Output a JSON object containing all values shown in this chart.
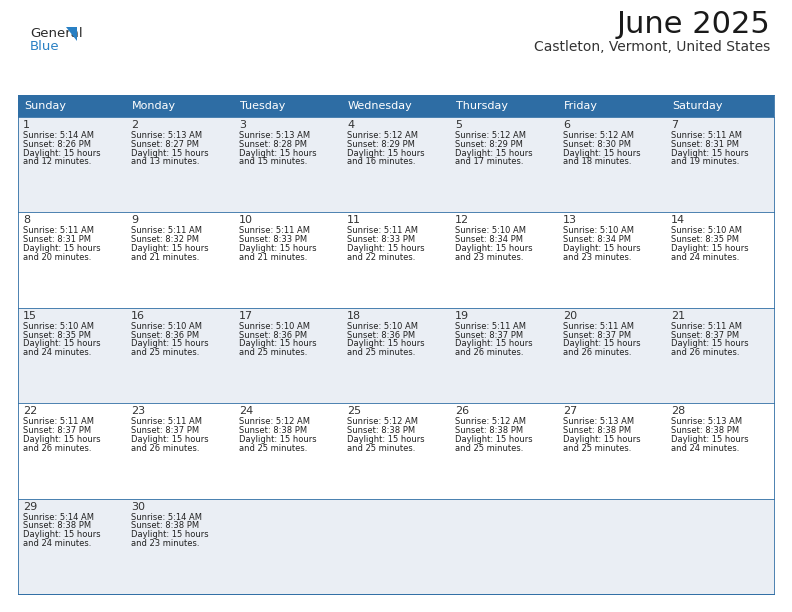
{
  "title": "June 2025",
  "subtitle": "Castleton, Vermont, United States",
  "header_color": "#2E6DA4",
  "header_text_color": "#FFFFFF",
  "days_of_week": [
    "Sunday",
    "Monday",
    "Tuesday",
    "Wednesday",
    "Thursday",
    "Friday",
    "Saturday"
  ],
  "bg_color": "#FFFFFF",
  "cell_bg_even": "#EAEEF4",
  "cell_bg_odd": "#FFFFFF",
  "border_color": "#2E6DA4",
  "text_color": "#222222",
  "day_num_color": "#333333",
  "calendar": [
    [
      {
        "day": 1,
        "sunrise": "5:14 AM",
        "sunset": "8:26 PM",
        "daylight": "15 hours and 12 minutes."
      },
      {
        "day": 2,
        "sunrise": "5:13 AM",
        "sunset": "8:27 PM",
        "daylight": "15 hours and 13 minutes."
      },
      {
        "day": 3,
        "sunrise": "5:13 AM",
        "sunset": "8:28 PM",
        "daylight": "15 hours and 15 minutes."
      },
      {
        "day": 4,
        "sunrise": "5:12 AM",
        "sunset": "8:29 PM",
        "daylight": "15 hours and 16 minutes."
      },
      {
        "day": 5,
        "sunrise": "5:12 AM",
        "sunset": "8:29 PM",
        "daylight": "15 hours and 17 minutes."
      },
      {
        "day": 6,
        "sunrise": "5:12 AM",
        "sunset": "8:30 PM",
        "daylight": "15 hours and 18 minutes."
      },
      {
        "day": 7,
        "sunrise": "5:11 AM",
        "sunset": "8:31 PM",
        "daylight": "15 hours and 19 minutes."
      }
    ],
    [
      {
        "day": 8,
        "sunrise": "5:11 AM",
        "sunset": "8:31 PM",
        "daylight": "15 hours and 20 minutes."
      },
      {
        "day": 9,
        "sunrise": "5:11 AM",
        "sunset": "8:32 PM",
        "daylight": "15 hours and 21 minutes."
      },
      {
        "day": 10,
        "sunrise": "5:11 AM",
        "sunset": "8:33 PM",
        "daylight": "15 hours and 21 minutes."
      },
      {
        "day": 11,
        "sunrise": "5:11 AM",
        "sunset": "8:33 PM",
        "daylight": "15 hours and 22 minutes."
      },
      {
        "day": 12,
        "sunrise": "5:10 AM",
        "sunset": "8:34 PM",
        "daylight": "15 hours and 23 minutes."
      },
      {
        "day": 13,
        "sunrise": "5:10 AM",
        "sunset": "8:34 PM",
        "daylight": "15 hours and 23 minutes."
      },
      {
        "day": 14,
        "sunrise": "5:10 AM",
        "sunset": "8:35 PM",
        "daylight": "15 hours and 24 minutes."
      }
    ],
    [
      {
        "day": 15,
        "sunrise": "5:10 AM",
        "sunset": "8:35 PM",
        "daylight": "15 hours and 24 minutes."
      },
      {
        "day": 16,
        "sunrise": "5:10 AM",
        "sunset": "8:36 PM",
        "daylight": "15 hours and 25 minutes."
      },
      {
        "day": 17,
        "sunrise": "5:10 AM",
        "sunset": "8:36 PM",
        "daylight": "15 hours and 25 minutes."
      },
      {
        "day": 18,
        "sunrise": "5:10 AM",
        "sunset": "8:36 PM",
        "daylight": "15 hours and 25 minutes."
      },
      {
        "day": 19,
        "sunrise": "5:11 AM",
        "sunset": "8:37 PM",
        "daylight": "15 hours and 26 minutes."
      },
      {
        "day": 20,
        "sunrise": "5:11 AM",
        "sunset": "8:37 PM",
        "daylight": "15 hours and 26 minutes."
      },
      {
        "day": 21,
        "sunrise": "5:11 AM",
        "sunset": "8:37 PM",
        "daylight": "15 hours and 26 minutes."
      }
    ],
    [
      {
        "day": 22,
        "sunrise": "5:11 AM",
        "sunset": "8:37 PM",
        "daylight": "15 hours and 26 minutes."
      },
      {
        "day": 23,
        "sunrise": "5:11 AM",
        "sunset": "8:37 PM",
        "daylight": "15 hours and 26 minutes."
      },
      {
        "day": 24,
        "sunrise": "5:12 AM",
        "sunset": "8:38 PM",
        "daylight": "15 hours and 25 minutes."
      },
      {
        "day": 25,
        "sunrise": "5:12 AM",
        "sunset": "8:38 PM",
        "daylight": "15 hours and 25 minutes."
      },
      {
        "day": 26,
        "sunrise": "5:12 AM",
        "sunset": "8:38 PM",
        "daylight": "15 hours and 25 minutes."
      },
      {
        "day": 27,
        "sunrise": "5:13 AM",
        "sunset": "8:38 PM",
        "daylight": "15 hours and 25 minutes."
      },
      {
        "day": 28,
        "sunrise": "5:13 AM",
        "sunset": "8:38 PM",
        "daylight": "15 hours and 24 minutes."
      }
    ],
    [
      {
        "day": 29,
        "sunrise": "5:14 AM",
        "sunset": "8:38 PM",
        "daylight": "15 hours and 24 minutes."
      },
      {
        "day": 30,
        "sunrise": "5:14 AM",
        "sunset": "8:38 PM",
        "daylight": "15 hours and 23 minutes."
      },
      null,
      null,
      null,
      null,
      null
    ]
  ],
  "logo_text1": "General",
  "logo_text2": "Blue",
  "logo_blue": "#2980C4",
  "title_fontsize": 22,
  "subtitle_fontsize": 10,
  "header_fontsize": 8,
  "cell_fontsize": 6.0,
  "daynum_fontsize": 8
}
